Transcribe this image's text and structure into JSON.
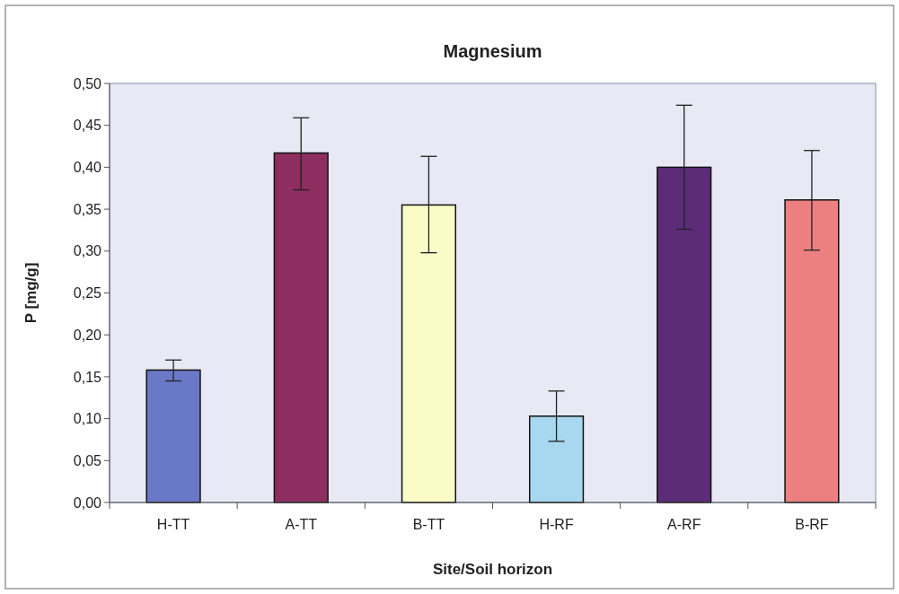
{
  "chart_data": {
    "type": "bar",
    "title": "Magnesium",
    "xlabel": "Site/Soil horizon",
    "ylabel": "P [mg/g]",
    "categories": [
      "H-TT",
      "A-TT",
      "B-TT",
      "H-RF",
      "A-RF",
      "B-RF"
    ],
    "values": [
      0.158,
      0.417,
      0.355,
      0.103,
      0.4,
      0.361
    ],
    "errors": [
      [
        0.145,
        0.17
      ],
      [
        0.373,
        0.459
      ],
      [
        0.298,
        0.413
      ],
      [
        0.073,
        0.133
      ],
      [
        0.326,
        0.474
      ],
      [
        0.301,
        0.42
      ]
    ],
    "colors": [
      "#6a78c8",
      "#8e2e60",
      "#fbfbc8",
      "#a8d8f0",
      "#5c2c78",
      "#ec8080"
    ],
    "ylim": [
      0,
      0.5
    ],
    "yticks": [
      {
        "value": 0,
        "label": "0,00"
      },
      {
        "value": 0.05,
        "label": "0,05"
      },
      {
        "value": 0.1,
        "label": "0,10"
      },
      {
        "value": 0.15,
        "label": "0,15"
      },
      {
        "value": 0.2,
        "label": "0,20"
      },
      {
        "value": 0.25,
        "label": "0,25"
      },
      {
        "value": 0.3,
        "label": "0,30"
      },
      {
        "value": 0.35,
        "label": "0,35"
      },
      {
        "value": 0.4,
        "label": "0,40"
      },
      {
        "value": 0.45,
        "label": "0,45"
      },
      {
        "value": 0.5,
        "label": "0,50"
      }
    ]
  }
}
